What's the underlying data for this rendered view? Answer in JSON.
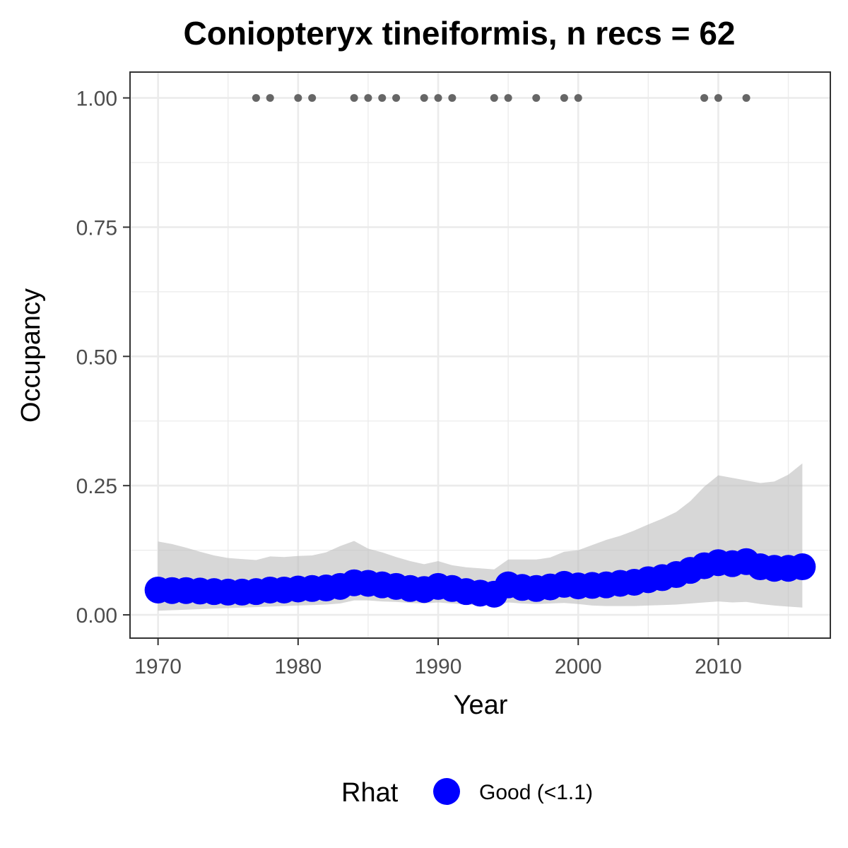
{
  "chart_data": {
    "type": "line",
    "title": "Coniopteryx tineiformis, n recs = 62",
    "xlabel": "Year",
    "ylabel": "Occupancy",
    "xlim": [
      1968,
      2018
    ],
    "ylim": [
      -0.045,
      1.05
    ],
    "x_ticks": [
      1970,
      1980,
      1990,
      2000,
      2010
    ],
    "y_ticks": [
      0.0,
      0.25,
      0.5,
      0.75,
      1.0
    ],
    "x_tick_labels": [
      "1970",
      "1980",
      "1990",
      "2000",
      "2010"
    ],
    "y_tick_labels": [
      "0.00",
      "0.25",
      "0.50",
      "0.75",
      "1.00"
    ],
    "grid": true,
    "colors": {
      "series": "#0000ff",
      "ribbon": "#bdbdbd",
      "records": "#666666",
      "grid": "#ebebeb",
      "panel_border": "#333333"
    },
    "series": [
      {
        "x": [
          1970,
          1971,
          1972,
          1973,
          1974,
          1975,
          1976,
          1977,
          1978,
          1979,
          1980,
          1981,
          1982,
          1983,
          1984,
          1985,
          1986,
          1987,
          1988,
          1989,
          1990,
          1991,
          1992,
          1993,
          1994,
          1995,
          1996,
          1997,
          1998,
          1999,
          2000,
          2001,
          2002,
          2003,
          2004,
          2005,
          2006,
          2007,
          2008,
          2009,
          2010,
          2011,
          2012,
          2013,
          2014,
          2015,
          2016
        ],
        "values": [
          0.048,
          0.047,
          0.047,
          0.046,
          0.045,
          0.044,
          0.044,
          0.045,
          0.048,
          0.048,
          0.05,
          0.051,
          0.052,
          0.055,
          0.062,
          0.061,
          0.058,
          0.055,
          0.051,
          0.049,
          0.055,
          0.051,
          0.045,
          0.042,
          0.04,
          0.058,
          0.053,
          0.051,
          0.054,
          0.059,
          0.056,
          0.057,
          0.058,
          0.061,
          0.063,
          0.068,
          0.072,
          0.078,
          0.086,
          0.095,
          0.101,
          0.099,
          0.103,
          0.093,
          0.09,
          0.09,
          0.093
        ],
        "lower": [
          0.008,
          0.009,
          0.01,
          0.011,
          0.012,
          0.013,
          0.014,
          0.015,
          0.016,
          0.017,
          0.018,
          0.019,
          0.02,
          0.022,
          0.028,
          0.028,
          0.026,
          0.025,
          0.023,
          0.022,
          0.024,
          0.022,
          0.02,
          0.019,
          0.018,
          0.024,
          0.022,
          0.021,
          0.022,
          0.023,
          0.021,
          0.018,
          0.017,
          0.017,
          0.017,
          0.018,
          0.019,
          0.02,
          0.022,
          0.024,
          0.026,
          0.024,
          0.025,
          0.021,
          0.018,
          0.016,
          0.014
        ],
        "upper": [
          0.142,
          0.137,
          0.13,
          0.122,
          0.115,
          0.11,
          0.108,
          0.106,
          0.113,
          0.112,
          0.114,
          0.115,
          0.121,
          0.133,
          0.143,
          0.128,
          0.121,
          0.112,
          0.104,
          0.098,
          0.104,
          0.096,
          0.092,
          0.09,
          0.088,
          0.107,
          0.107,
          0.107,
          0.111,
          0.122,
          0.125,
          0.135,
          0.145,
          0.153,
          0.163,
          0.175,
          0.186,
          0.199,
          0.22,
          0.248,
          0.27,
          0.265,
          0.26,
          0.255,
          0.258,
          0.271,
          0.293
        ]
      }
    ],
    "records": {
      "y": 1.0,
      "x": [
        1977,
        1978,
        1980,
        1981,
        1984,
        1985,
        1986,
        1987,
        1989,
        1990,
        1991,
        1994,
        1995,
        1997,
        1999,
        2000,
        2009,
        2010,
        2012
      ]
    },
    "legend": {
      "position": "bottom",
      "title": "Rhat",
      "entries": [
        {
          "label": "Good (<1.1)",
          "color": "#0000ff"
        }
      ]
    }
  }
}
